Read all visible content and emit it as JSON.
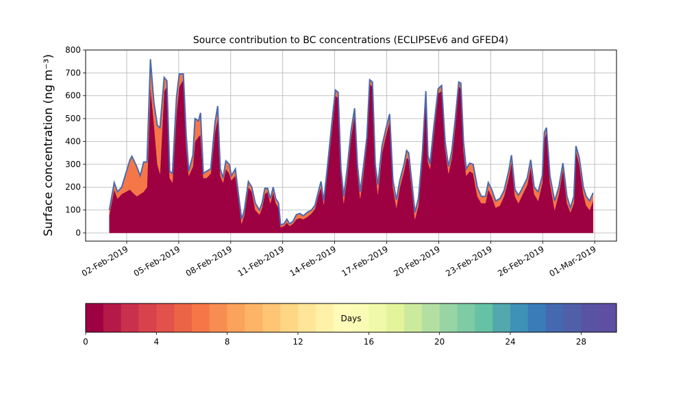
{
  "chart_data": {
    "type": "stacked_area",
    "title": "Source contribution to BC concentrations (ECLIPSEv6 and GFED4)",
    "y_label": "Surface concentration (ng m⁻³)",
    "x": [
      0.0,
      0.28,
      0.47,
      0.71,
      1.19,
      1.3,
      1.58,
      1.78,
      1.98,
      2.17,
      2.37,
      2.57,
      2.77,
      2.92,
      3.16,
      3.32,
      3.48,
      3.64,
      3.87,
      4.03,
      4.27,
      4.43,
      4.58,
      4.82,
      4.94,
      5.14,
      5.26,
      5.42,
      5.61,
      5.85,
      6.09,
      6.25,
      6.4,
      6.56,
      6.72,
      6.92,
      7.04,
      7.27,
      7.43,
      7.63,
      7.79,
      8.02,
      8.22,
      8.42,
      8.66,
      8.81,
      8.97,
      9.13,
      9.29,
      9.45,
      9.6,
      9.76,
      9.88,
      10.08,
      10.24,
      10.4,
      10.59,
      10.79,
      10.99,
      11.19,
      11.42,
      11.66,
      11.86,
      12.06,
      12.21,
      12.37,
      12.57,
      12.81,
      13.04,
      13.2,
      13.36,
      13.52,
      13.72,
      13.95,
      14.15,
      14.31,
      14.47,
      14.66,
      14.86,
      15.02,
      15.18,
      15.34,
      15.49,
      15.73,
      15.97,
      16.17,
      16.36,
      16.56,
      16.76,
      17.0,
      17.15,
      17.27,
      17.51,
      17.63,
      17.83,
      18.06,
      18.26,
      18.38,
      18.5,
      18.7,
      18.97,
      19.17,
      19.37,
      19.57,
      19.76,
      19.96,
      20.16,
      20.28,
      20.43,
      20.59,
      20.79,
      20.99,
      21.23,
      21.46,
      21.7,
      21.86,
      22.06,
      22.29,
      22.53,
      22.77,
      23.04,
      23.2,
      23.4,
      23.6,
      23.79,
      24.11,
      24.31,
      24.51,
      24.74,
      24.98,
      25.1,
      25.22,
      25.42,
      25.69,
      25.93,
      26.17,
      26.4,
      26.6,
      26.8,
      26.92,
      27.11,
      27.35,
      27.51,
      27.71,
      27.91
    ],
    "series": [
      {
        "color": "#9e0142",
        "values": [
          80,
          190,
          150,
          170,
          190,
          180,
          160,
          170,
          180,
          200,
          640,
          480,
          300,
          260,
          620,
          640,
          240,
          220,
          520,
          640,
          670,
          380,
          250,
          290,
          400,
          420,
          430,
          240,
          240,
          260,
          440,
          500,
          250,
          220,
          280,
          260,
          230,
          250,
          160,
          40,
          80,
          200,
          180,
          100,
          80,
          110,
          170,
          180,
          130,
          180,
          130,
          110,
          25,
          30,
          45,
          30,
          40,
          60,
          65,
          60,
          70,
          85,
          105,
          165,
          200,
          125,
          260,
          430,
          600,
          590,
          260,
          130,
          250,
          420,
          520,
          270,
          150,
          260,
          400,
          650,
          640,
          280,
          170,
          350,
          430,
          490,
          200,
          110,
          200,
          270,
          330,
          320,
          150,
          60,
          120,
          320,
          600,
          310,
          280,
          420,
          610,
          620,
          370,
          260,
          330,
          470,
          640,
          630,
          360,
          250,
          270,
          260,
          160,
          130,
          130,
          190,
          160,
          110,
          120,
          160,
          240,
          310,
          160,
          130,
          160,
          210,
          290,
          170,
          140,
          220,
          410,
          440,
          220,
          100,
          170,
          280,
          130,
          90,
          130,
          360,
          300,
          170,
          120,
          100,
          140
        ]
      },
      {
        "color": "#f57748",
        "values": [
          20,
          30,
          30,
          30,
          130,
          155,
          130,
          80,
          130,
          110,
          120,
          90,
          170,
          200,
          60,
          25,
          30,
          40,
          70,
          55,
          25,
          50,
          20,
          50,
          100,
          70,
          95,
          20,
          30,
          20,
          40,
          55,
          30,
          20,
          35,
          40,
          20,
          30,
          20,
          20,
          20,
          25,
          20,
          30,
          20,
          20,
          25,
          15,
          20,
          20,
          20,
          20,
          10,
          10,
          15,
          10,
          10,
          20,
          20,
          15,
          20,
          15,
          15,
          15,
          25,
          15,
          20,
          30,
          25,
          25,
          20,
          30,
          30,
          30,
          25,
          30,
          30,
          30,
          20,
          20,
          20,
          20,
          40,
          30,
          30,
          30,
          30,
          35,
          30,
          30,
          30,
          30,
          30,
          30,
          30,
          30,
          20,
          30,
          20,
          30,
          20,
          25,
          30,
          30,
          30,
          30,
          20,
          25,
          40,
          30,
          35,
          40,
          40,
          30,
          30,
          30,
          30,
          30,
          30,
          25,
          30,
          30,
          30,
          35,
          30,
          30,
          30,
          30,
          40,
          30,
          30,
          20,
          30,
          40,
          30,
          25,
          30,
          20,
          30,
          20,
          30,
          30,
          40,
          40,
          35
        ]
      }
    ],
    "outline_color": "#4a6aae",
    "xlim": [
      -1.37,
      29.26
    ],
    "xticks": [
      {
        "value": 1,
        "label": "02-Feb-2019"
      },
      {
        "value": 4,
        "label": "05-Feb-2019"
      },
      {
        "value": 7,
        "label": "08-Feb-2019"
      },
      {
        "value": 10,
        "label": "11-Feb-2019"
      },
      {
        "value": 13,
        "label": "14-Feb-2019"
      },
      {
        "value": 16,
        "label": "17-Feb-2019"
      },
      {
        "value": 19,
        "label": "20-Feb-2019"
      },
      {
        "value": 22,
        "label": "23-Feb-2019"
      },
      {
        "value": 25,
        "label": "26-Feb-2019"
      },
      {
        "value": 28,
        "label": "01-Mar-2019"
      }
    ],
    "ylim": [
      -36,
      800
    ],
    "yticks": [
      0,
      100,
      200,
      300,
      400,
      500,
      600,
      700,
      800
    ],
    "grid": true,
    "colorbar": {
      "label": "Days",
      "lim": [
        0,
        30
      ],
      "ticks": [
        0,
        4,
        8,
        12,
        16,
        20,
        24,
        28
      ],
      "colors": [
        "#9e0142",
        "#b41947",
        "#c9304b",
        "#d8424c",
        "#e2524a",
        "#ec6446",
        "#f57748",
        "#f88d52",
        "#fba35c",
        "#fdb466",
        "#fdc574",
        "#fed685",
        "#fee597",
        "#fff1a8",
        "#fffbb8",
        "#f9fcb5",
        "#f0f9a8",
        "#e3f49b",
        "#ccea9d",
        "#b3e0a2",
        "#98d5a4",
        "#7ecba4",
        "#66c2a5",
        "#52a8ad",
        "#3e91b7",
        "#3a7cb8",
        "#4569b0",
        "#5060a8",
        "#5854a3",
        "#5e4fa2"
      ]
    }
  }
}
